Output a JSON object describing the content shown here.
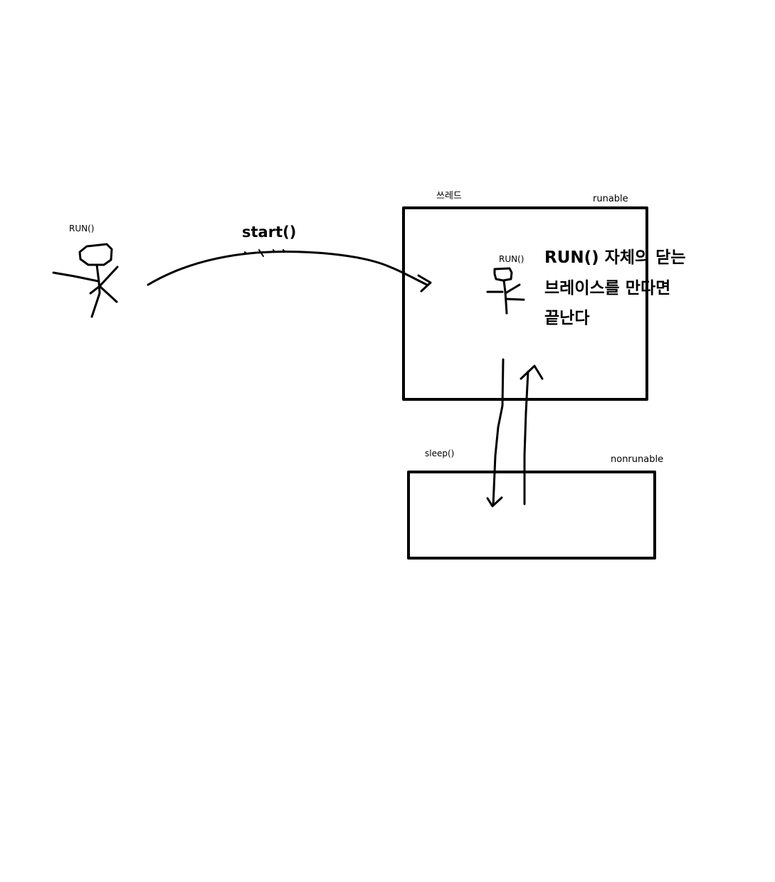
{
  "labels": {
    "outside_run": "RUN()",
    "start_call": "start()",
    "thread_title": "쓰레드",
    "runable_state": "runable",
    "inside_run": "RUN()",
    "sleep_call": "sleep()",
    "nonrunable_state": "nonrunable"
  },
  "note": {
    "line1": "RUN() 자체의 닫는",
    "line2": "브레이스를 만다면",
    "line3": "끝난다"
  },
  "colors": {
    "ink": "#000000",
    "background": "#ffffff"
  }
}
